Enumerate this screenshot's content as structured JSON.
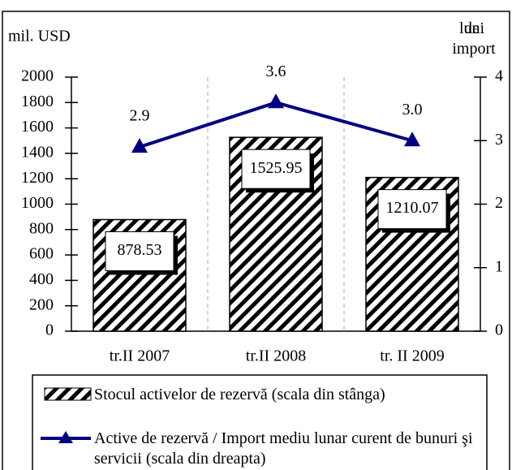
{
  "chart_data": {
    "type": "bar_line",
    "categories": [
      "tr.II 2007",
      "tr.II 2008",
      "tr. II 2009"
    ],
    "y_label": "mil. USD",
    "y2_label": "luni de import",
    "ylim": [
      0,
      2000
    ],
    "yticks": [
      0,
      200,
      400,
      600,
      800,
      1000,
      1200,
      1400,
      1600,
      1800,
      2000
    ],
    "y2lim": [
      0,
      4
    ],
    "y2ticks": [
      0,
      1,
      2,
      3,
      4
    ],
    "series": [
      {
        "name": "Stocul activelor de rezervă (scala din stânga)",
        "type": "bar",
        "color": "#000000",
        "pattern": "hatch",
        "values": [
          878.53,
          1525.95,
          1210.07
        ]
      },
      {
        "name": "Active de rezervă / Import mediu lunar curent de bunuri şi servicii (scala din dreapta)",
        "type": "line",
        "axis": "y2",
        "color": "#000080",
        "marker": "triangle",
        "values": [
          2.9,
          3.6,
          3.0
        ],
        "value_labels": [
          "2.9",
          "3.6",
          "3.0"
        ]
      }
    ]
  }
}
